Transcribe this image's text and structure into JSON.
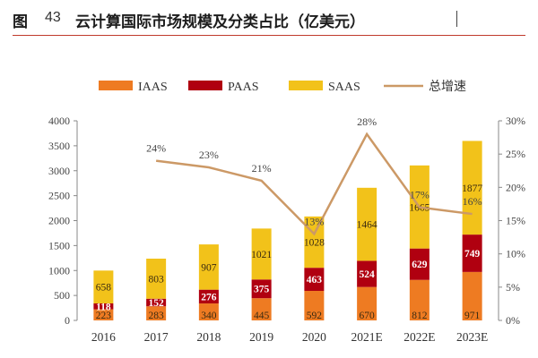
{
  "header": {
    "figure_label": "图",
    "figure_number": "43",
    "title": "云计算国际市场规模及分类占比（亿美元）"
  },
  "colors": {
    "iaas": "#EE7B22",
    "paas": "#B00010",
    "saas": "#F2C21A",
    "growth": "#CC9966",
    "title_rule": "#C0392B"
  },
  "chart_data": {
    "type": "bar",
    "stacked": true,
    "title": "云计算国际市场规模及分类占比（亿美元）",
    "categories": [
      "2016",
      "2017",
      "2018",
      "2019",
      "2020",
      "2021E",
      "2022E",
      "2023E"
    ],
    "series": [
      {
        "name": "IAAS",
        "axis": "left",
        "values": [
          223,
          283,
          340,
          445,
          592,
          670,
          812,
          971
        ]
      },
      {
        "name": "PAAS",
        "axis": "left",
        "values": [
          118,
          152,
          276,
          375,
          463,
          524,
          629,
          749
        ]
      },
      {
        "name": "SAAS",
        "axis": "left",
        "values": [
          658,
          803,
          907,
          1021,
          1028,
          1464,
          1665,
          1877
        ]
      },
      {
        "name": "总增速",
        "type": "line",
        "axis": "right",
        "values": [
          null,
          24,
          23,
          21,
          13,
          28,
          17,
          16
        ],
        "labels": [
          "",
          "24%",
          "23%",
          "21%",
          "13%",
          "28%",
          "17%",
          "16%"
        ]
      }
    ],
    "y_left": {
      "ylim": [
        0,
        4000
      ],
      "ticks": [
        0,
        500,
        1000,
        1500,
        2000,
        2500,
        3000,
        3500,
        4000
      ]
    },
    "y_right": {
      "ylim": [
        0,
        30
      ],
      "ticks": [
        "0%",
        "5%",
        "10%",
        "15%",
        "20%",
        "25%",
        "30%"
      ]
    },
    "legend": {
      "position": "top",
      "entries": [
        "IAAS",
        "PAAS",
        "SAAS",
        "总增速"
      ]
    },
    "grid": false
  }
}
